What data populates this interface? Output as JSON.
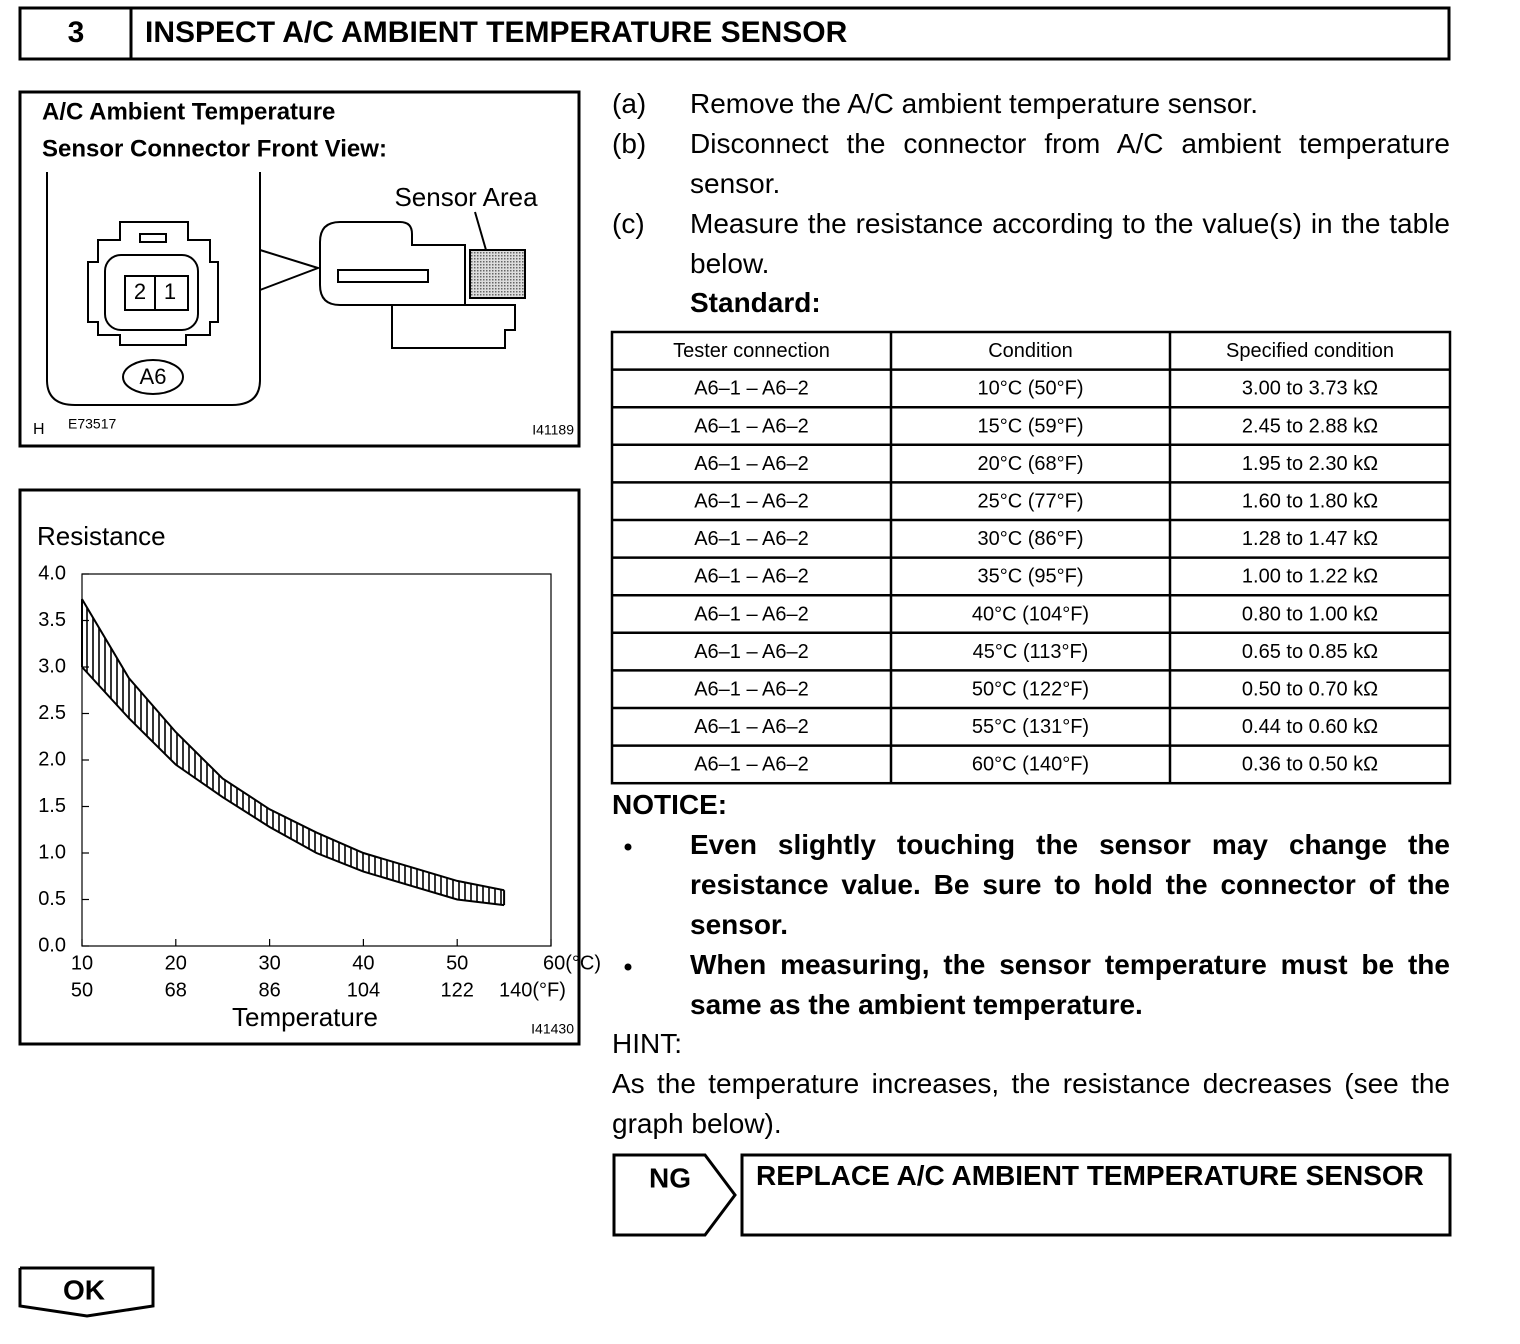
{
  "header": {
    "number": "3",
    "title": "INSPECT A/C AMBIENT TEMPERATURE SENSOR"
  },
  "figure": {
    "title": [
      "A/C Ambient Temperature",
      "Sensor Connector Front View:"
    ],
    "label": "Sensor Area",
    "pins": [
      "2",
      "1"
    ],
    "connector": "A6",
    "corner": "H",
    "code": "E73517",
    "id": "I41189"
  },
  "steps": [
    {
      "label": "(a)",
      "text": "Remove the A/C ambient temperature sensor."
    },
    {
      "label": "(b)",
      "text": "Disconnect the connector from A/C ambient temperature sensor."
    },
    {
      "label": "(c)",
      "text": "Measure the resistance according to the value(s) in the table below."
    }
  ],
  "standard": "Standard:",
  "table": {
    "header": [
      "Tester connection",
      "Condition",
      "Specified condition"
    ],
    "rows": [
      [
        "A6–1 – A6–2",
        "10°C (50°F)",
        "3.00 to 3.73 kΩ"
      ],
      [
        "A6–1 – A6–2",
        "15°C (59°F)",
        "2.45 to 2.88 kΩ"
      ],
      [
        "A6–1 – A6–2",
        "20°C (68°F)",
        "1.95 to 2.30 kΩ"
      ],
      [
        "A6–1 – A6–2",
        "25°C (77°F)",
        "1.60 to 1.80 kΩ"
      ],
      [
        "A6–1 – A6–2",
        "30°C (86°F)",
        "1.28 to 1.47 kΩ"
      ],
      [
        "A6–1 – A6–2",
        "35°C (95°F)",
        "1.00 to 1.22 kΩ"
      ],
      [
        "A6–1 – A6–2",
        "40°C (104°F)",
        "0.80 to 1.00 kΩ"
      ],
      [
        "A6–1 – A6–2",
        "45°C (113°F)",
        "0.65 to 0.85 kΩ"
      ],
      [
        "A6–1 – A6–2",
        "50°C (122°F)",
        "0.50 to 0.70 kΩ"
      ],
      [
        "A6–1 – A6–2",
        "55°C (131°F)",
        "0.44 to 0.60 kΩ"
      ],
      [
        "A6–1 – A6–2",
        "60°C (140°F)",
        "0.36 to 0.50 kΩ"
      ]
    ]
  },
  "notice": {
    "title": "NOTICE:",
    "items": [
      "Even slightly touching the sensor may change the resistance value. Be sure to hold the connector of the sensor.",
      "When measuring, the sensor temperature must be the same as the ambient temperature."
    ]
  },
  "hint": {
    "title": "HINT:",
    "text": "As the temperature increases, the resistance decreases (see the graph below)."
  },
  "ng": {
    "label": "NG",
    "text": "REPLACE A/C AMBIENT TEMPERATURE SENSOR"
  },
  "ok": {
    "label": "OK"
  },
  "chart_data": {
    "type": "band",
    "ylabel": "Resistance",
    "xlabel": "Temperature",
    "id": "I41430",
    "x": [
      10,
      15,
      20,
      25,
      30,
      35,
      40,
      45,
      50,
      55
    ],
    "upper": [
      3.73,
      2.88,
      2.3,
      1.8,
      1.47,
      1.22,
      1.0,
      0.85,
      0.7,
      0.6
    ],
    "lower": [
      3.0,
      2.45,
      1.95,
      1.6,
      1.28,
      1.0,
      0.8,
      0.65,
      0.5,
      0.44
    ],
    "xlim": [
      10,
      60
    ],
    "xticks": [
      10,
      20,
      30,
      40,
      50,
      {
        "value": 60,
        "label": "60(°C)"
      }
    ],
    "x2lim": [
      50,
      140
    ],
    "x2ticks": [
      50,
      68,
      86,
      104,
      122,
      {
        "value": 140,
        "label": "140(°F)"
      }
    ],
    "ylim": [
      0,
      4
    ],
    "yticks": [
      {
        "value": 0,
        "label": "0.0"
      },
      {
        "value": 0.5,
        "label": "0.5"
      },
      {
        "value": 1,
        "label": "1.0"
      },
      {
        "value": 1.5,
        "label": "1.5"
      },
      {
        "value": 2,
        "label": "2.0"
      },
      {
        "value": 2.5,
        "label": "2.5"
      },
      {
        "value": 3,
        "label": "3.0"
      },
      {
        "value": 3.5,
        "label": "3.5"
      },
      {
        "value": 4,
        "label": "4.0"
      }
    ],
    "hatch": true,
    "color": "#000000"
  }
}
